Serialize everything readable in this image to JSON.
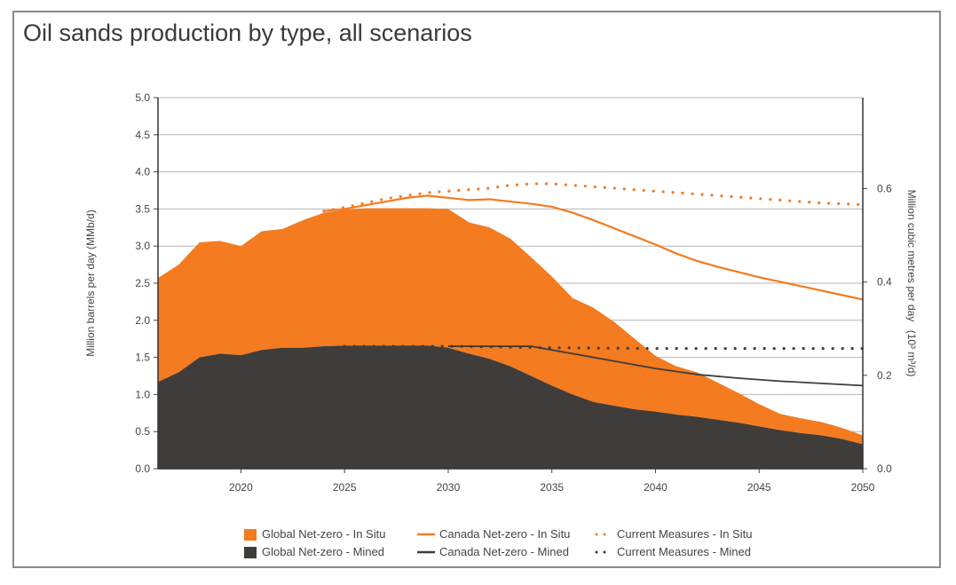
{
  "chart_data": {
    "type": "area",
    "title": "Oil sands production by type, all scenarios",
    "ylabel": "Million barrels per day (MMb/d)",
    "ylabel_right_main": "Million cubic metres per day",
    "ylabel_right_unit": "(10³ m³/d)",
    "xlim": [
      2016,
      2050
    ],
    "ylim": [
      0,
      5.0
    ],
    "ylim_right": [
      0,
      0.795
    ],
    "x_ticks": [
      "2020",
      "2025",
      "2030",
      "2035",
      "2040",
      "2045",
      "2050"
    ],
    "y_ticks": [
      "0.0",
      "0.5",
      "1.0",
      "1.5",
      "2.0",
      "2.5",
      "3.0",
      "3.5",
      "4.0",
      "4.5",
      "5.0"
    ],
    "y_ticks_right": [
      "0.0",
      "0.2",
      "0.4",
      "0.6"
    ],
    "grid": true,
    "legend_position": "bottom",
    "series": [
      {
        "name": "Global Net-zero - In Situ",
        "style": "stacked-area",
        "color": "#f47b20",
        "x": [
          2016,
          2017,
          2018,
          2019,
          2020,
          2021,
          2022,
          2023,
          2024,
          2025,
          2026,
          2027,
          2028,
          2029,
          2030,
          2031,
          2032,
          2033,
          2034,
          2035,
          2036,
          2037,
          2038,
          2039,
          2040,
          2041,
          2042,
          2043,
          2044,
          2045,
          2046,
          2047,
          2048,
          2049,
          2050
        ],
        "values": [
          1.4,
          1.45,
          1.55,
          1.52,
          1.47,
          1.6,
          1.6,
          1.72,
          1.8,
          1.83,
          1.85,
          1.85,
          1.85,
          1.85,
          1.87,
          1.77,
          1.77,
          1.72,
          1.6,
          1.47,
          1.3,
          1.27,
          1.13,
          0.95,
          0.75,
          0.65,
          0.6,
          0.5,
          0.4,
          0.3,
          0.22,
          0.2,
          0.18,
          0.15,
          0.12
        ]
      },
      {
        "name": "Global Net-zero - Mined",
        "style": "area",
        "color": "#3f3c39",
        "x": [
          2016,
          2017,
          2018,
          2019,
          2020,
          2021,
          2022,
          2023,
          2024,
          2025,
          2026,
          2027,
          2028,
          2029,
          2030,
          2031,
          2032,
          2033,
          2034,
          2035,
          2036,
          2037,
          2038,
          2039,
          2040,
          2041,
          2042,
          2043,
          2044,
          2045,
          2046,
          2047,
          2048,
          2049,
          2050
        ],
        "values": [
          1.17,
          1.3,
          1.5,
          1.55,
          1.53,
          1.6,
          1.63,
          1.63,
          1.65,
          1.66,
          1.66,
          1.66,
          1.66,
          1.66,
          1.63,
          1.55,
          1.48,
          1.38,
          1.25,
          1.12,
          1.0,
          0.9,
          0.85,
          0.8,
          0.77,
          0.73,
          0.7,
          0.66,
          0.62,
          0.57,
          0.52,
          0.48,
          0.45,
          0.4,
          0.33
        ]
      },
      {
        "name": "Canada Net-zero - In Situ",
        "style": "solid-line",
        "color": "#f47b20",
        "x": [
          2024,
          2025,
          2026,
          2027,
          2028,
          2029,
          2030,
          2031,
          2032,
          2033,
          2034,
          2035,
          2036,
          2037,
          2038,
          2039,
          2040,
          2041,
          2042,
          2043,
          2044,
          2045,
          2046,
          2047,
          2048,
          2049,
          2050
        ],
        "values": [
          3.47,
          3.5,
          3.55,
          3.6,
          3.65,
          3.68,
          3.65,
          3.62,
          3.63,
          3.6,
          3.57,
          3.53,
          3.45,
          3.35,
          3.24,
          3.13,
          3.02,
          2.9,
          2.8,
          2.72,
          2.65,
          2.58,
          2.52,
          2.46,
          2.4,
          2.34,
          2.28
        ]
      },
      {
        "name": "Canada Net-zero - Mined",
        "style": "solid-line",
        "color": "#3f3c39",
        "x": [
          2030,
          2032,
          2034,
          2036,
          2038,
          2040,
          2042,
          2044,
          2046,
          2048,
          2050
        ],
        "values": [
          1.65,
          1.65,
          1.65,
          1.55,
          1.45,
          1.35,
          1.27,
          1.22,
          1.18,
          1.15,
          1.12
        ]
      },
      {
        "name": "Current Measures - In Situ",
        "style": "dotted-line",
        "color": "#f47b20",
        "x": [
          2024,
          2025,
          2026,
          2027,
          2028,
          2029,
          2030,
          2031,
          2032,
          2033,
          2034,
          2035,
          2036,
          2037,
          2038,
          2039,
          2040,
          2041,
          2042,
          2043,
          2044,
          2045,
          2046,
          2047,
          2048,
          2049,
          2050
        ],
        "values": [
          3.47,
          3.52,
          3.58,
          3.64,
          3.68,
          3.72,
          3.74,
          3.76,
          3.78,
          3.82,
          3.84,
          3.84,
          3.82,
          3.8,
          3.78,
          3.76,
          3.74,
          3.72,
          3.7,
          3.68,
          3.66,
          3.64,
          3.62,
          3.6,
          3.58,
          3.57,
          3.56
        ]
      },
      {
        "name": "Current Measures - Mined",
        "style": "dotted-line",
        "color": "#3f3c39",
        "x": [
          2025,
          2030,
          2035,
          2040,
          2045,
          2050
        ],
        "values": [
          1.65,
          1.65,
          1.63,
          1.62,
          1.62,
          1.62
        ]
      }
    ]
  }
}
